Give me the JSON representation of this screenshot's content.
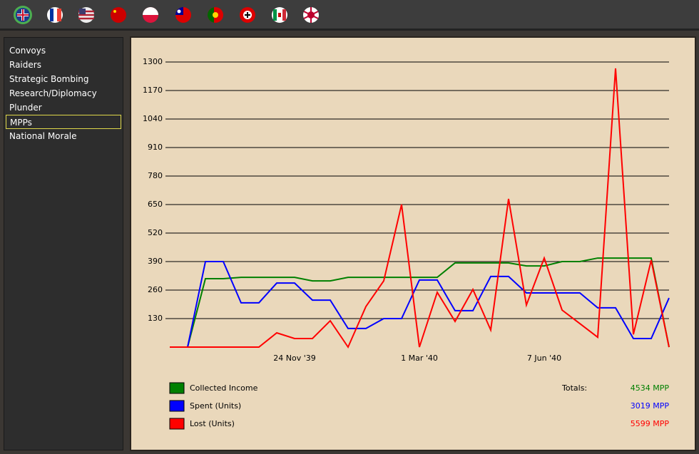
{
  "menu": {
    "items": [
      "Convoys",
      "Raiders",
      "Strategic Bombing",
      "Research/Diplomacy",
      "Plunder",
      "MPPs",
      "National Morale"
    ],
    "selected": 5
  },
  "chart_data": {
    "type": "line",
    "categories": [
      null,
      null,
      null,
      null,
      null,
      null,
      null,
      "24 Nov '39",
      null,
      null,
      null,
      null,
      null,
      null,
      "1 Mar '40",
      null,
      null,
      null,
      null,
      null,
      null,
      "7 Jun '40",
      null,
      null,
      null,
      null,
      null,
      null,
      null
    ],
    "series": [
      {
        "name": "Collected Income",
        "color": "#008000",
        "values": [
          0,
          0,
          312,
          312,
          318,
          318,
          318,
          318,
          302,
          302,
          318,
          318,
          318,
          318,
          318,
          318,
          384,
          384,
          384,
          384,
          370,
          370,
          390,
          390,
          406,
          406,
          406,
          406,
          0
        ]
      },
      {
        "name": "Spent (Units)",
        "color": "#0000ff",
        "values": [
          0,
          0,
          390,
          390,
          202,
          202,
          292,
          292,
          214,
          214,
          85,
          85,
          130,
          130,
          306,
          306,
          166,
          166,
          322,
          322,
          247,
          247,
          247,
          247,
          179,
          179,
          39,
          39,
          224
        ]
      },
      {
        "name": "Lost (Units)",
        "color": "#ff0000",
        "values": [
          0,
          0,
          0,
          0,
          0,
          0,
          65,
          39,
          39,
          120,
          0,
          185,
          302,
          650,
          0,
          250,
          117,
          263,
          78,
          676,
          192,
          406,
          169,
          107,
          45,
          1271,
          58,
          396,
          0
        ]
      }
    ],
    "ylim": [
      0,
      1300
    ],
    "yticks": [
      130,
      260,
      390,
      520,
      650,
      780,
      910,
      1040,
      1170,
      1300
    ],
    "grid": true,
    "totals": {
      "label": "Totals:",
      "values": [
        "4534 MPP",
        "3019 MPP",
        "5599 MPP"
      ]
    }
  }
}
